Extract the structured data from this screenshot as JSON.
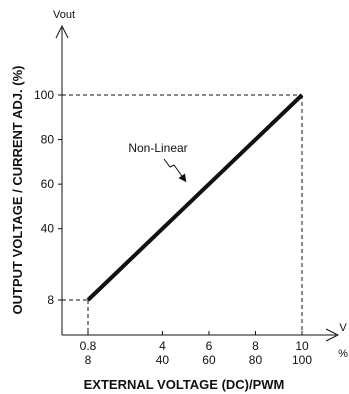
{
  "chart_data": {
    "type": "line",
    "xlabel": "EXTERNAL VOLTAGE (DC)/PWM",
    "ylabel": "OUTPUT VOLTAGE / CURRENT ADJ. (%)",
    "y_unit": "Vout",
    "x_unit_voltage": "V",
    "x_unit_percent": "%",
    "xlim": [
      0.8,
      10
    ],
    "ylim": [
      8,
      100
    ],
    "x_ticks_voltage": [
      "0.8",
      "4",
      "6",
      "8",
      "10"
    ],
    "x_ticks_percent": [
      "8",
      "40",
      "60",
      "80",
      "100"
    ],
    "x_tick_values": [
      0.8,
      4,
      6,
      8,
      10
    ],
    "y_ticks": [
      "8",
      "40",
      "60",
      "80",
      "100"
    ],
    "y_tick_values": [
      8,
      40,
      60,
      80,
      100
    ],
    "series": [
      {
        "x": [
          0.8,
          10
        ],
        "y": [
          8,
          100
        ],
        "color": "#111111"
      }
    ],
    "annotations": [
      {
        "text": "Non-Linear"
      }
    ],
    "grid": false,
    "legend": "none"
  }
}
